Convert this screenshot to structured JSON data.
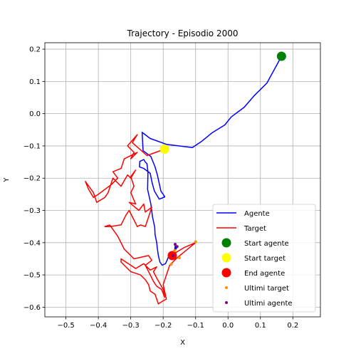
{
  "chart_data": {
    "type": "line",
    "title": "Trajectory - Episodio 2000",
    "xlabel": "X",
    "ylabel": "Y",
    "xlim": [
      -0.565,
      0.285
    ],
    "ylim": [
      -0.63,
      0.22
    ],
    "xticks": [
      -0.5,
      -0.4,
      -0.3,
      -0.2,
      -0.1,
      0.0,
      0.1,
      0.2
    ],
    "xtick_labels": [
      "−0.5",
      "−0.4",
      "−0.3",
      "−0.2",
      "−0.1",
      "0.0",
      "0.1",
      "0.2"
    ],
    "yticks": [
      -0.6,
      -0.5,
      -0.4,
      -0.3,
      -0.2,
      -0.1,
      0.0,
      0.1,
      0.2
    ],
    "ytick_labels": [
      "−0.6",
      "−0.5",
      "−0.4",
      "−0.3",
      "−0.2",
      "−0.1",
      "0.0",
      "0.1",
      "0.2"
    ],
    "grid": true,
    "legend_position": "lower-right",
    "series": [
      {
        "name": "Agente",
        "kind": "line",
        "color": "#0000ff",
        "points": [
          [
            0.165,
            0.178
          ],
          [
            0.12,
            0.095
          ],
          [
            0.08,
            0.055
          ],
          [
            0.05,
            0.02
          ],
          [
            0.01,
            -0.01
          ],
          [
            -0.01,
            -0.035
          ],
          [
            -0.05,
            -0.06
          ],
          [
            -0.08,
            -0.085
          ],
          [
            -0.11,
            -0.105
          ],
          [
            -0.19,
            -0.095
          ],
          [
            -0.24,
            -0.077
          ],
          [
            -0.265,
            -0.058
          ],
          [
            -0.262,
            -0.115
          ],
          [
            -0.238,
            -0.133
          ],
          [
            -0.225,
            -0.165
          ],
          [
            -0.218,
            -0.19
          ],
          [
            -0.207,
            -0.24
          ],
          [
            -0.2,
            -0.25
          ],
          [
            -0.195,
            -0.258
          ],
          [
            -0.212,
            -0.265
          ],
          [
            -0.227,
            -0.24
          ],
          [
            -0.234,
            -0.215
          ],
          [
            -0.24,
            -0.185
          ],
          [
            -0.26,
            -0.17
          ],
          [
            -0.273,
            -0.165
          ],
          [
            -0.272,
            -0.148
          ],
          [
            -0.26,
            -0.142
          ],
          [
            -0.255,
            -0.15
          ],
          [
            -0.25,
            -0.155
          ],
          [
            -0.247,
            -0.18
          ],
          [
            -0.248,
            -0.235
          ],
          [
            -0.238,
            -0.28
          ],
          [
            -0.233,
            -0.32
          ],
          [
            -0.226,
            -0.352
          ],
          [
            -0.225,
            -0.375
          ],
          [
            -0.22,
            -0.4
          ],
          [
            -0.218,
            -0.418
          ],
          [
            -0.215,
            -0.44
          ],
          [
            -0.21,
            -0.46
          ],
          [
            -0.203,
            -0.47
          ],
          [
            -0.193,
            -0.465
          ],
          [
            -0.188,
            -0.455
          ],
          [
            -0.182,
            -0.44
          ],
          [
            -0.172,
            -0.44
          ],
          [
            -0.165,
            -0.43
          ],
          [
            -0.163,
            -0.41
          ],
          [
            -0.16,
            -0.42
          ],
          [
            -0.157,
            -0.41
          ]
        ]
      },
      {
        "name": "Target",
        "kind": "line",
        "color": "#ff0000",
        "points": [
          [
            -0.196,
            -0.11
          ],
          [
            -0.25,
            -0.13
          ],
          [
            -0.295,
            -0.09
          ],
          [
            -0.28,
            -0.065
          ],
          [
            -0.31,
            -0.1
          ],
          [
            -0.29,
            -0.12
          ],
          [
            -0.3,
            -0.14
          ],
          [
            -0.28,
            -0.12
          ],
          [
            -0.32,
            -0.14
          ],
          [
            -0.33,
            -0.17
          ],
          [
            -0.355,
            -0.18
          ],
          [
            -0.34,
            -0.2
          ],
          [
            -0.36,
            -0.22
          ],
          [
            -0.4,
            -0.25
          ],
          [
            -0.415,
            -0.26
          ],
          [
            -0.43,
            -0.235
          ],
          [
            -0.44,
            -0.21
          ],
          [
            -0.415,
            -0.245
          ],
          [
            -0.405,
            -0.275
          ],
          [
            -0.38,
            -0.26
          ],
          [
            -0.37,
            -0.245
          ],
          [
            -0.355,
            -0.2
          ],
          [
            -0.33,
            -0.225
          ],
          [
            -0.31,
            -0.19
          ],
          [
            -0.3,
            -0.2
          ],
          [
            -0.285,
            -0.175
          ],
          [
            -0.3,
            -0.195
          ],
          [
            -0.29,
            -0.225
          ],
          [
            -0.3,
            -0.245
          ],
          [
            -0.285,
            -0.28
          ],
          [
            -0.305,
            -0.275
          ],
          [
            -0.275,
            -0.3
          ],
          [
            -0.26,
            -0.28
          ],
          [
            -0.255,
            -0.305
          ],
          [
            -0.235,
            -0.29
          ],
          [
            -0.245,
            -0.32
          ],
          [
            -0.255,
            -0.35
          ],
          [
            -0.27,
            -0.345
          ],
          [
            -0.28,
            -0.35
          ],
          [
            -0.305,
            -0.3
          ],
          [
            -0.315,
            -0.315
          ],
          [
            -0.33,
            -0.345
          ],
          [
            -0.365,
            -0.35
          ],
          [
            -0.38,
            -0.35
          ],
          [
            -0.365,
            -0.345
          ],
          [
            -0.34,
            -0.38
          ],
          [
            -0.32,
            -0.42
          ],
          [
            -0.305,
            -0.435
          ],
          [
            -0.29,
            -0.45
          ],
          [
            -0.245,
            -0.44
          ],
          [
            -0.235,
            -0.455
          ],
          [
            -0.255,
            -0.47
          ],
          [
            -0.24,
            -0.5
          ],
          [
            -0.23,
            -0.52
          ],
          [
            -0.22,
            -0.535
          ],
          [
            -0.205,
            -0.545
          ],
          [
            -0.195,
            -0.57
          ],
          [
            -0.2,
            -0.545
          ],
          [
            -0.22,
            -0.51
          ],
          [
            -0.23,
            -0.49
          ],
          [
            -0.22,
            -0.475
          ],
          [
            -0.24,
            -0.485
          ],
          [
            -0.26,
            -0.465
          ],
          [
            -0.285,
            -0.48
          ],
          [
            -0.33,
            -0.45
          ],
          [
            -0.33,
            -0.46
          ],
          [
            -0.3,
            -0.49
          ],
          [
            -0.27,
            -0.5
          ],
          [
            -0.255,
            -0.515
          ],
          [
            -0.245,
            -0.53
          ],
          [
            -0.24,
            -0.55
          ],
          [
            -0.225,
            -0.56
          ],
          [
            -0.215,
            -0.59
          ],
          [
            -0.2,
            -0.58
          ],
          [
            -0.19,
            -0.575
          ],
          [
            -0.2,
            -0.53
          ],
          [
            -0.18,
            -0.47
          ],
          [
            -0.17,
            -0.46
          ],
          [
            -0.155,
            -0.445
          ],
          [
            -0.1,
            -0.4
          ],
          [
            -0.135,
            -0.415
          ],
          [
            -0.16,
            -0.43
          ],
          [
            -0.175,
            -0.45
          ],
          [
            -0.175,
            -0.44
          ]
        ]
      }
    ],
    "markers": [
      {
        "name": "Start agente",
        "color": "#008000",
        "x": 0.165,
        "y": 0.178,
        "size": "large"
      },
      {
        "name": "Start target",
        "color": "#ffff00",
        "x": -0.196,
        "y": -0.11,
        "size": "large"
      },
      {
        "name": "End agente",
        "color": "#ff0000",
        "x": -0.172,
        "y": -0.44,
        "size": "large"
      }
    ],
    "small_points": [
      {
        "name": "Ultimi target",
        "color": "#ff8c00",
        "points": [
          [
            -0.15,
            -0.447
          ],
          [
            -0.1,
            -0.397
          ],
          [
            -0.175,
            -0.467
          ],
          [
            -0.165,
            -0.425
          ]
        ]
      },
      {
        "name": "Ultimi agente",
        "color": "#800080",
        "points": [
          [
            -0.163,
            -0.405
          ],
          [
            -0.157,
            -0.412
          ],
          [
            -0.17,
            -0.44
          ]
        ]
      }
    ],
    "legend": [
      "Agente",
      "Target",
      "Start agente",
      "Start target",
      "End agente",
      "Ultimi target",
      "Ultimi agente"
    ]
  }
}
